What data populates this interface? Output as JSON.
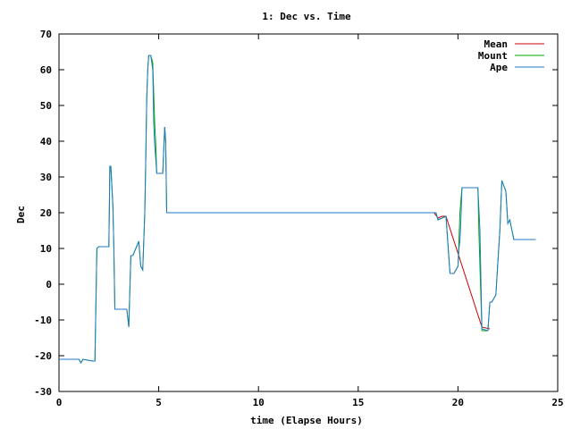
{
  "chart_data": {
    "type": "line",
    "title": "1: Dec vs. Time",
    "xlabel": "time (Elapse Hours)",
    "ylabel": "Dec",
    "xlim": [
      0,
      25
    ],
    "ylim": [
      -30,
      70
    ],
    "xticks": [
      0,
      5,
      10,
      15,
      20,
      25
    ],
    "yticks": [
      -30,
      -20,
      -10,
      0,
      10,
      20,
      30,
      40,
      50,
      60,
      70
    ],
    "grid": false,
    "legend_position": "top-right",
    "series": [
      {
        "name": "Mean",
        "color": "#cc0000",
        "x": [
          14.2,
          18.7,
          18.8,
          19.0,
          19.2,
          19.4,
          21.2,
          21.6
        ],
        "y": [
          20,
          20,
          20,
          18.5,
          19,
          19,
          -12,
          -12.5
        ]
      },
      {
        "name": "Mount",
        "color": "#00aa00",
        "x": [
          0.0,
          1.0,
          1.1,
          1.2,
          1.7,
          1.8,
          1.9,
          2.0,
          2.5,
          2.55,
          2.6,
          2.7,
          2.75,
          2.8,
          3.4,
          3.5,
          3.6,
          3.7,
          4.0,
          4.1,
          4.2,
          4.3,
          4.35,
          4.4,
          4.45,
          4.5,
          4.6,
          4.7,
          4.8,
          4.85,
          4.9,
          5.0,
          5.2,
          5.3,
          5.35,
          5.4,
          5.5,
          14.2,
          18.9,
          19.0,
          19.4,
          19.6,
          19.8,
          20.0,
          20.05,
          20.1,
          20.2,
          20.3,
          21.0,
          21.05,
          21.1,
          21.2,
          21.5,
          21.6,
          21.7,
          21.9,
          22.0,
          22.1,
          22.2,
          22.4,
          22.5,
          22.6,
          22.8,
          23.9
        ],
        "y": [
          -21,
          -21,
          -22,
          -21,
          -21.5,
          -21.5,
          10,
          10.5,
          10.5,
          33,
          33,
          22,
          10,
          -7,
          -7,
          -12,
          8,
          8,
          12,
          5,
          4,
          20,
          35,
          52,
          60,
          64,
          64,
          62,
          45,
          39,
          31,
          31,
          31,
          44,
          40,
          20,
          20,
          20,
          20,
          18,
          19,
          3,
          3,
          5,
          12,
          20,
          27,
          27,
          27,
          15,
          5,
          -13,
          -13,
          -5,
          -5,
          -3,
          6,
          15,
          29,
          26,
          17,
          18,
          12.5,
          12.5
        ]
      },
      {
        "name": "Ape",
        "color": "#1f78c8",
        "x": [
          0.0,
          1.0,
          1.1,
          1.2,
          1.7,
          1.8,
          1.9,
          2.0,
          2.5,
          2.55,
          2.6,
          2.7,
          2.75,
          2.8,
          3.4,
          3.5,
          3.6,
          3.7,
          4.0,
          4.1,
          4.2,
          4.3,
          4.35,
          4.4,
          4.45,
          4.5,
          4.6,
          4.7,
          4.75,
          4.8,
          4.9,
          5.0,
          5.2,
          5.3,
          5.35,
          5.4,
          5.5,
          14.2,
          18.9,
          19.0,
          19.4,
          19.6,
          19.8,
          20.0,
          20.05,
          20.1,
          20.15,
          20.2,
          20.3,
          21.0,
          21.1,
          21.2,
          21.5,
          21.6,
          21.7,
          21.9,
          22.0,
          22.1,
          22.2,
          22.4,
          22.5,
          22.6,
          22.8,
          23.9
        ],
        "y": [
          -21,
          -21,
          -22,
          -21,
          -21.5,
          -21.5,
          10,
          10.5,
          10.5,
          33,
          33,
          22,
          10,
          -7,
          -7,
          -12,
          8,
          8,
          12,
          5,
          4,
          20,
          35,
          52,
          60,
          64,
          64,
          60,
          45,
          39,
          31,
          31,
          31,
          44,
          40,
          20,
          20,
          20,
          20,
          18,
          19,
          3,
          3,
          5,
          10,
          12,
          18,
          27,
          27,
          27,
          15,
          -12.5,
          -13,
          -5,
          -5,
          -3,
          6,
          15,
          29,
          26,
          17,
          18,
          12.5,
          12.5
        ]
      }
    ]
  }
}
